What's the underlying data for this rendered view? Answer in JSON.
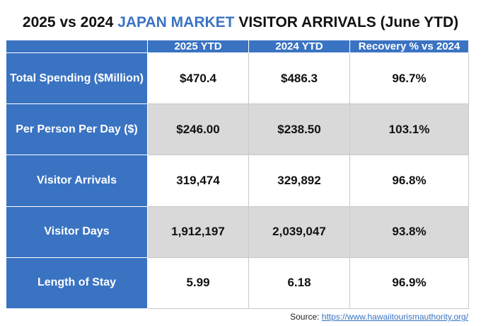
{
  "title": {
    "prefix": "2025 vs 2024",
    "highlight": "JAPAN MARKET",
    "suffix": "VISITOR ARRIVALS (June YTD)"
  },
  "colors": {
    "header_blue": "#3a73c2",
    "shaded_row": "#d9d9d9"
  },
  "chart_data": {
    "type": "table",
    "columns": [
      "",
      "2025 YTD",
      "2024 YTD",
      "Recovery % vs 2024"
    ],
    "rows": [
      {
        "label": "Total Spending ($Million)",
        "cells": [
          "$470.4",
          "$486.3",
          "96.7%"
        ]
      },
      {
        "label": "Per Person Per Day ($)",
        "cells": [
          "$246.00",
          "$238.50",
          "103.1%"
        ]
      },
      {
        "label": "Visitor Arrivals",
        "cells": [
          "319,474",
          "329,892",
          "96.8%"
        ]
      },
      {
        "label": "Visitor Days",
        "cells": [
          "1,912,197",
          "2,039,047",
          "93.8%"
        ]
      },
      {
        "label": "Length of Stay",
        "cells": [
          "5.99",
          "6.18",
          "96.9%"
        ]
      }
    ]
  },
  "source": {
    "label": "Source:",
    "link": "https://www.hawaiitourismauthority.org/"
  }
}
